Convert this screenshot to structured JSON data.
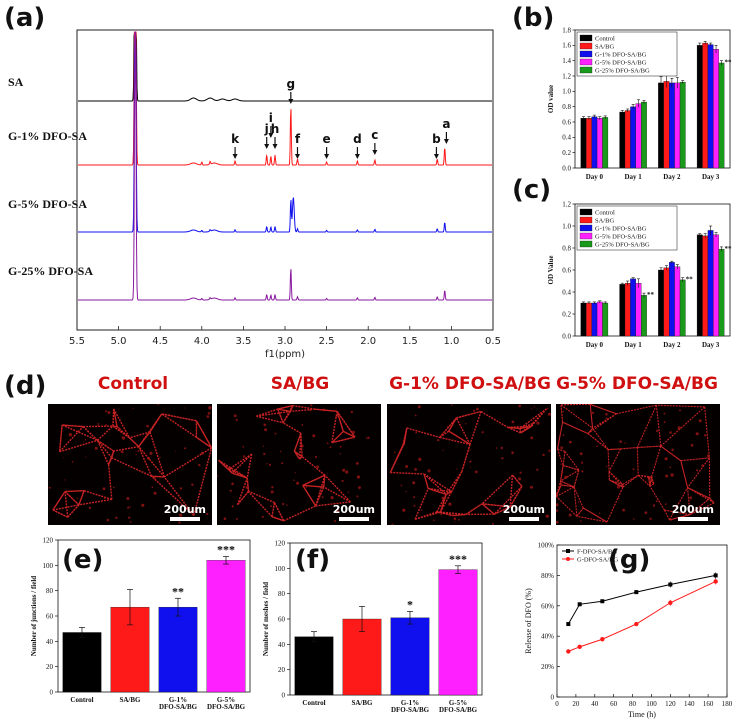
{
  "panels": {
    "a": "(a)",
    "b": "(b)",
    "c": "(c)",
    "d": "(d)",
    "e": "(e)",
    "f": "(f)",
    "g": "(g)"
  },
  "colors": {
    "black": "#000000",
    "red": "#ff1a1a",
    "blue": "#1010ee",
    "magenta": "#ff20ff",
    "green": "#1a9a1a",
    "purple": "#8a1aa0"
  },
  "chart_data": [
    {
      "id": "a",
      "type": "line",
      "title": "",
      "xlabel": "f1(ppm)",
      "xlim": [
        5.5,
        0.5
      ],
      "x_ticks": [
        "5.5",
        "5.0",
        "4.5",
        "4.0",
        "3.5",
        "3.0",
        "2.5",
        "2.0",
        "1.5",
        "1.0",
        "0.5"
      ],
      "series": [
        {
          "name": "SA",
          "color": "black"
        },
        {
          "name": "G-1% DFO-SA",
          "color": "red"
        },
        {
          "name": "G-5% DFO-SA",
          "color": "blue"
        },
        {
          "name": "G-25% DFO-SA",
          "color": "purple"
        }
      ],
      "peaks": [
        {
          "label": "a",
          "ppm": 1.08
        },
        {
          "label": "b",
          "ppm": 1.17
        },
        {
          "label": "c",
          "ppm": 1.92
        },
        {
          "label": "d",
          "ppm": 2.13
        },
        {
          "label": "e",
          "ppm": 2.5
        },
        {
          "label": "f",
          "ppm": 2.85
        },
        {
          "label": "g",
          "ppm": 2.93
        },
        {
          "label": "h",
          "ppm": 3.12
        },
        {
          "label": "i",
          "ppm": 3.17
        },
        {
          "label": "j",
          "ppm": 3.22
        },
        {
          "label": "k",
          "ppm": 3.6
        }
      ]
    },
    {
      "id": "b",
      "type": "bar",
      "ylabel": "OD value",
      "ylim": [
        0,
        1.8
      ],
      "y_ticks": [
        "0.0",
        "0.2",
        "0.4",
        "0.6",
        "0.8",
        "1.0",
        "1.2",
        "1.4",
        "1.6",
        "1.8"
      ],
      "categories": [
        "Day 0",
        "Day 1",
        "Day 2",
        "Day 3"
      ],
      "series": [
        {
          "name": "Control",
          "color": "black",
          "values": [
            0.65,
            0.73,
            1.11,
            1.6
          ],
          "errors": [
            0.02,
            0.02,
            0.08,
            0.03
          ]
        },
        {
          "name": "SA/BG",
          "color": "red",
          "values": [
            0.65,
            0.75,
            1.13,
            1.63
          ],
          "errors": [
            0.02,
            0.02,
            0.08,
            0.02
          ]
        },
        {
          "name": "G-1% DFO-SA/BG",
          "color": "blue",
          "values": [
            0.67,
            0.8,
            1.11,
            1.61
          ],
          "errors": [
            0.02,
            0.03,
            0.06,
            0.02
          ]
        },
        {
          "name": "G-5% DFO-SA/BG",
          "color": "magenta",
          "values": [
            0.65,
            0.84,
            1.11,
            1.55
          ],
          "errors": [
            0.02,
            0.05,
            0.07,
            0.05
          ]
        },
        {
          "name": "G-25% DFO-SA/BG",
          "color": "green",
          "values": [
            0.66,
            0.86,
            1.12,
            1.37
          ],
          "errors": [
            0.02,
            0.02,
            0.02,
            0.03
          ]
        }
      ],
      "annotations": [
        {
          "text": "**",
          "category": "Day 3",
          "series": "G-25% DFO-SA/BG"
        }
      ]
    },
    {
      "id": "c",
      "type": "bar",
      "ylabel": "OD Value",
      "ylim": [
        0,
        1.2
      ],
      "y_ticks": [
        "0.0",
        "0.2",
        "0.4",
        "0.6",
        "0.8",
        "1.0",
        "1.2"
      ],
      "categories": [
        "Day 0",
        "Day 1",
        "Day 2",
        "Day 3"
      ],
      "series": [
        {
          "name": "Control",
          "color": "black",
          "values": [
            0.3,
            0.47,
            0.6,
            0.92
          ],
          "errors": [
            0.01,
            0.01,
            0.02,
            0.01
          ]
        },
        {
          "name": "SA/BG",
          "color": "red",
          "values": [
            0.3,
            0.48,
            0.62,
            0.91
          ],
          "errors": [
            0.01,
            0.02,
            0.02,
            0.02
          ]
        },
        {
          "name": "G-1% DFO-SA/BG",
          "color": "blue",
          "values": [
            0.3,
            0.52,
            0.67,
            0.96
          ],
          "errors": [
            0.01,
            0.01,
            0.01,
            0.04
          ]
        },
        {
          "name": "G-5% DFO-SA/BG",
          "color": "magenta",
          "values": [
            0.31,
            0.48,
            0.63,
            0.92
          ],
          "errors": [
            0.01,
            0.04,
            0.02,
            0.02
          ]
        },
        {
          "name": "G-25% DFO-SA/BG",
          "color": "green",
          "values": [
            0.3,
            0.37,
            0.51,
            0.79
          ],
          "errors": [
            0.01,
            0.02,
            0.02,
            0.02
          ]
        }
      ],
      "annotations": [
        {
          "text": "**",
          "category": "Day 1",
          "series": "G-25% DFO-SA/BG"
        },
        {
          "text": "**",
          "category": "Day 2",
          "series": "G-25% DFO-SA/BG"
        },
        {
          "text": "**",
          "category": "Day 3",
          "series": "G-25% DFO-SA/BG"
        }
      ]
    },
    {
      "id": "e",
      "type": "bar",
      "ylabel": "Number of junctions / field",
      "ylim": [
        0,
        120
      ],
      "y_ticks": [
        "0",
        "20",
        "40",
        "60",
        "80",
        "100",
        "120"
      ],
      "categories": [
        "Control",
        "SA/BG",
        "G-1% DFO-SA/BG",
        "G-5% DFO-SA/BG"
      ],
      "values": [
        47,
        67,
        67,
        104
      ],
      "errors": [
        4,
        14,
        7,
        3
      ],
      "colors": [
        "black",
        "red",
        "blue",
        "magenta"
      ],
      "annotations": [
        "",
        "",
        "**",
        "***"
      ]
    },
    {
      "id": "f",
      "type": "bar",
      "ylabel": "Number of meshes / field",
      "ylim": [
        0,
        120
      ],
      "y_ticks": [
        "0",
        "20",
        "40",
        "60",
        "80",
        "100",
        "120"
      ],
      "categories": [
        "Control",
        "SA/BG",
        "G-1% DFO-SA/BG",
        "G-5% DFO-SA/BG"
      ],
      "values": [
        46,
        60,
        61,
        99
      ],
      "errors": [
        4,
        10,
        5,
        3
      ],
      "colors": [
        "black",
        "red",
        "blue",
        "magenta"
      ],
      "annotations": [
        "",
        "",
        "*",
        "***"
      ]
    },
    {
      "id": "g",
      "type": "line",
      "xlabel": "Time (h)",
      "ylabel": "Release of DFO (%)",
      "xlim": [
        0,
        180
      ],
      "ylim": [
        0,
        100
      ],
      "x_ticks": [
        "0",
        "20",
        "40",
        "60",
        "80",
        "100",
        "120",
        "140",
        "160",
        "180"
      ],
      "y_ticks": [
        "0",
        "20%",
        "40%",
        "60%",
        "80%",
        "100%"
      ],
      "series": [
        {
          "name": "F-DFO-SA/BG",
          "color": "black",
          "x": [
            12,
            24,
            48,
            84,
            120,
            168
          ],
          "y": [
            48,
            61,
            63,
            69,
            74,
            80
          ],
          "errors": [
            1,
            1,
            1,
            1,
            2,
            2
          ]
        },
        {
          "name": "G-DFO-SA/BG",
          "color": "red",
          "x": [
            12,
            24,
            48,
            84,
            120,
            168
          ],
          "y": [
            30,
            33,
            38,
            48,
            62,
            76
          ],
          "errors": [
            1,
            1,
            1,
            1,
            2,
            2
          ]
        }
      ]
    }
  ],
  "micrographs": [
    {
      "title": "Control",
      "scale": "200um"
    },
    {
      "title": "SA/BG",
      "scale": "200um"
    },
    {
      "title": "G-1% DFO-SA/BG",
      "scale": "200um"
    },
    {
      "title": "G-5% DFO-SA/BG",
      "scale": "200um"
    }
  ]
}
